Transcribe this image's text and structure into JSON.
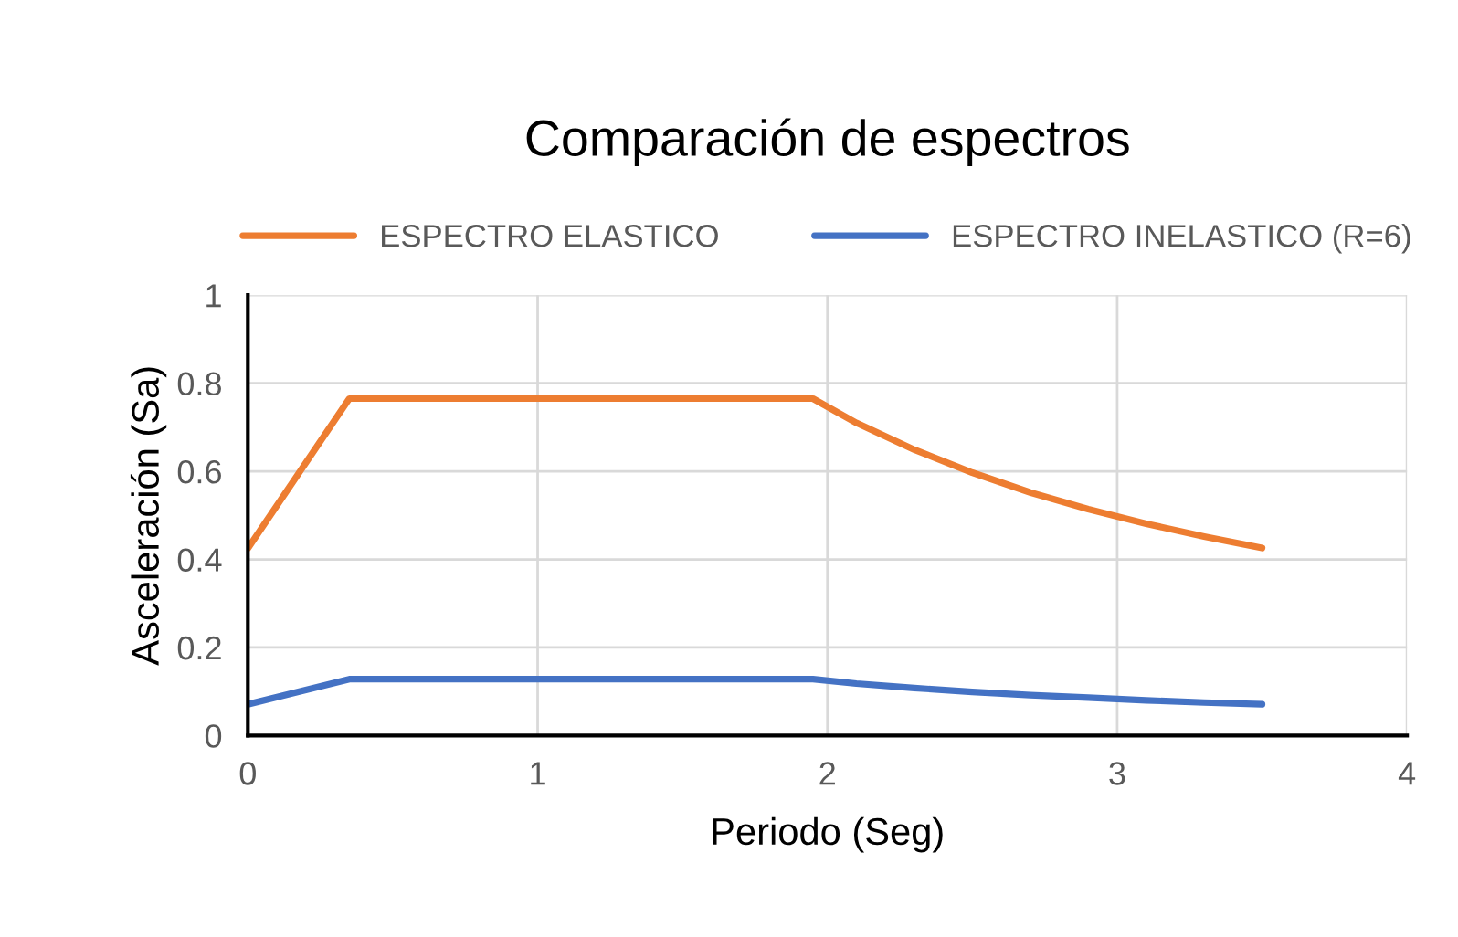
{
  "chart_data": {
    "type": "line",
    "title": "Comparación de espectros",
    "xlabel": "Periodo (Seg)",
    "ylabel": "Asceleración (Sa)",
    "x": [
      0,
      0.35,
      1.95,
      2.1,
      2.3,
      2.5,
      2.7,
      2.9,
      3.1,
      3.3,
      3.5
    ],
    "series": [
      {
        "name": "ESPECTRO ELASTICO",
        "color": "#ed7d31",
        "values": [
          0.425,
          0.765,
          0.765,
          0.71,
          0.649,
          0.597,
          0.552,
          0.514,
          0.481,
          0.452,
          0.426
        ]
      },
      {
        "name": "ESPECTRO INELASTICO (R=6)",
        "color": "#4472c4",
        "values": [
          0.071,
          0.128,
          0.128,
          0.118,
          0.108,
          0.099,
          0.092,
          0.086,
          0.08,
          0.075,
          0.071
        ]
      }
    ],
    "xlim": [
      0,
      4
    ],
    "xticks": [
      0,
      1,
      2,
      3,
      4
    ],
    "ylim": [
      0,
      1
    ],
    "yticks": [
      0,
      0.2,
      0.4,
      0.6,
      0.8,
      1
    ],
    "grid": true,
    "legend": "top",
    "marker": "none",
    "line_style": "solid"
  }
}
